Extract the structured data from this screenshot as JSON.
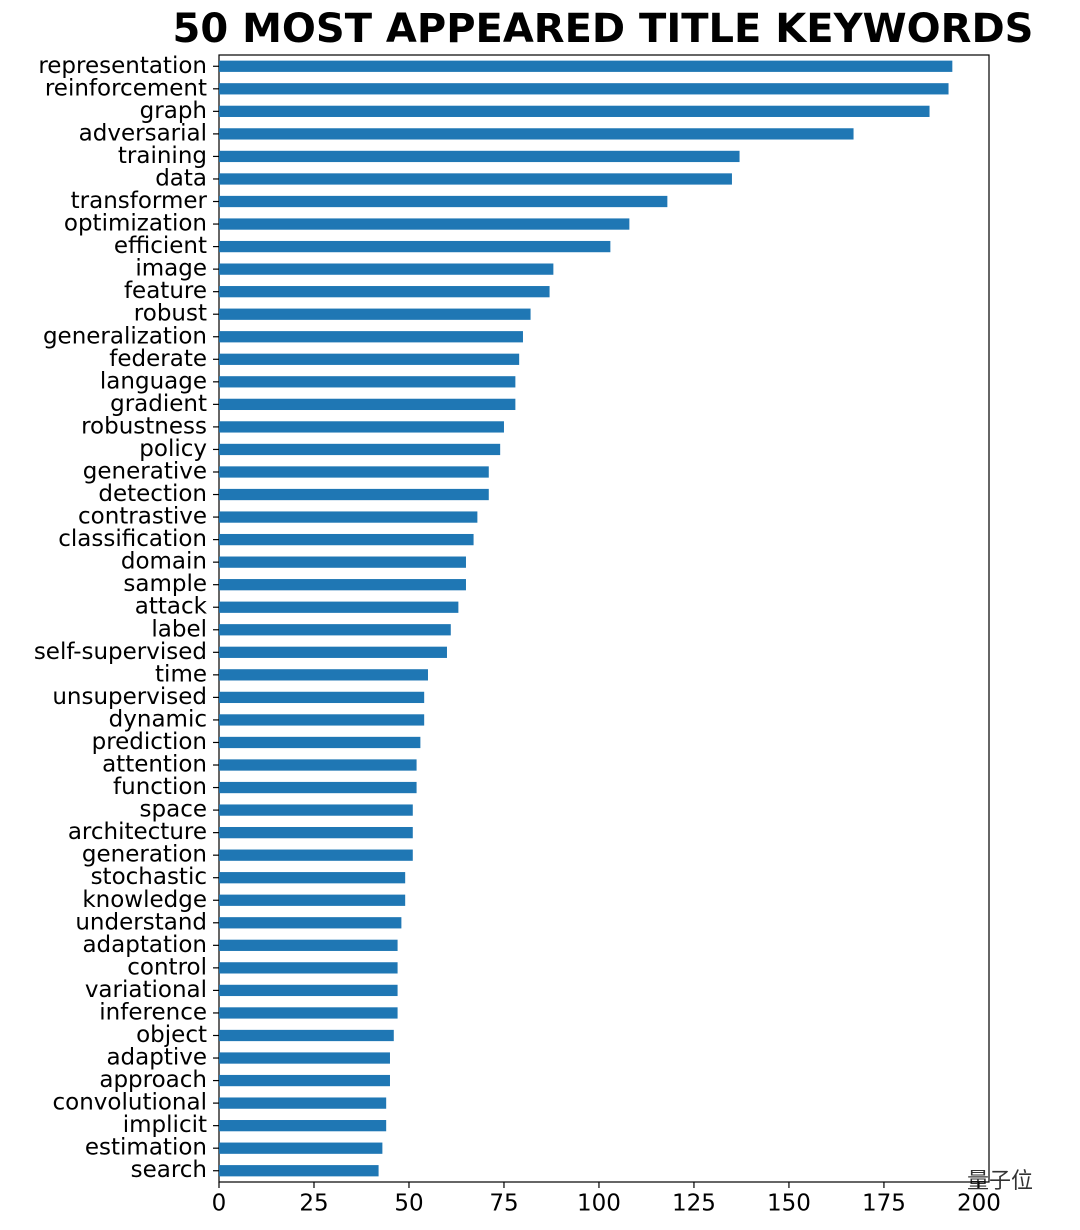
{
  "chart_data": {
    "type": "barh",
    "title": "50 MOST APPEARED TITLE KEYWORDS",
    "categories": [
      "representation",
      "reinforcement",
      "graph",
      "adversarial",
      "training",
      "data",
      "transformer",
      "optimization",
      "efficient",
      "image",
      "feature",
      "robust",
      "generalization",
      "federate",
      "language",
      "gradient",
      "robustness",
      "policy",
      "generative",
      "detection",
      "contrastive",
      "classification",
      "domain",
      "sample",
      "attack",
      "label",
      "self-supervised",
      "time",
      "unsupervised",
      "dynamic",
      "prediction",
      "attention",
      "function",
      "space",
      "architecture",
      "generation",
      "stochastic",
      "knowledge",
      "understand",
      "adaptation",
      "control",
      "variational",
      "inference",
      "object",
      "adaptive",
      "approach",
      "convolutional",
      "implicit",
      "estimation",
      "search"
    ],
    "values": [
      193,
      192,
      187,
      167,
      137,
      135,
      118,
      108,
      103,
      88,
      87,
      82,
      80,
      79,
      78,
      78,
      75,
      74,
      71,
      71,
      68,
      67,
      65,
      65,
      63,
      61,
      60,
      55,
      54,
      54,
      53,
      52,
      52,
      51,
      51,
      51,
      49,
      49,
      48,
      47,
      47,
      47,
      47,
      46,
      45,
      45,
      44,
      44,
      43,
      42
    ],
    "color": "#1f77b4",
    "xlim": [
      0,
      202.65
    ],
    "xticks": [
      0,
      25,
      50,
      75,
      100,
      125,
      150,
      175,
      200
    ],
    "watermark": "量子位"
  }
}
